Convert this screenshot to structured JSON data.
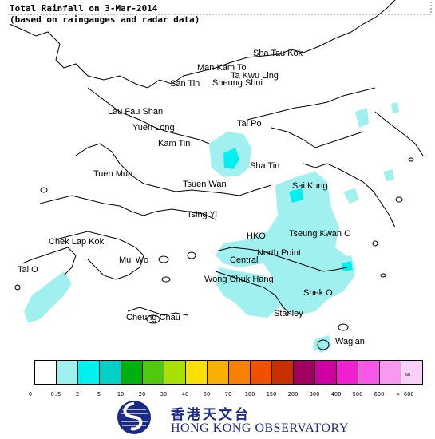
{
  "title": {
    "line1": "Total Rainfall on 3-Mar-2014",
    "line2": "(based on raingauges and radar data)"
  },
  "places": [
    {
      "name": "Sha Tau Kok"
    },
    {
      "name": "Man Kam To"
    },
    {
      "name": "Ta Kwu Ling"
    },
    {
      "name": "San Tin"
    },
    {
      "name": "Sheung Shui"
    },
    {
      "name": "Lau Fau Shan"
    },
    {
      "name": "Yuen Long"
    },
    {
      "name": "Tai Po"
    },
    {
      "name": "Kam Tin"
    },
    {
      "name": "Sha Tin"
    },
    {
      "name": "Tuen Mun"
    },
    {
      "name": "Tsuen Wan"
    },
    {
      "name": "Sai Kung"
    },
    {
      "name": "Tsing Yi"
    },
    {
      "name": "Chek Lap Kok"
    },
    {
      "name": "HKO"
    },
    {
      "name": "Tseung Kwan O"
    },
    {
      "name": "Mui Wo"
    },
    {
      "name": "North Point"
    },
    {
      "name": "Central"
    },
    {
      "name": "Tai O"
    },
    {
      "name": "Wong Chuk Hang"
    },
    {
      "name": "Shek O"
    },
    {
      "name": "Stanley"
    },
    {
      "name": "Cheung Chau"
    },
    {
      "name": "Waglan"
    }
  ],
  "legend": {
    "unit": "mm",
    "colors": [
      "#ffffff",
      "#a0f0f0",
      "#00f0f0",
      "#00d0c8",
      "#00b010",
      "#50c810",
      "#a8e000",
      "#f8e000",
      "#f8b000",
      "#f88000",
      "#f05000",
      "#c83000",
      "#a00060",
      "#d000a0",
      "#f020d0",
      "#f858e8",
      "#f898f0",
      "#f8d0f8"
    ],
    "ticks": [
      "0",
      "0.5",
      "2",
      "5",
      "10",
      "20",
      "30",
      "40",
      "50",
      "70",
      "100",
      "150",
      "200",
      "300",
      "400",
      "500",
      "600",
      "> 600"
    ]
  },
  "logo": {
    "chinese": "香港天文台",
    "english": "HONG KONG OBSERVATORY"
  }
}
